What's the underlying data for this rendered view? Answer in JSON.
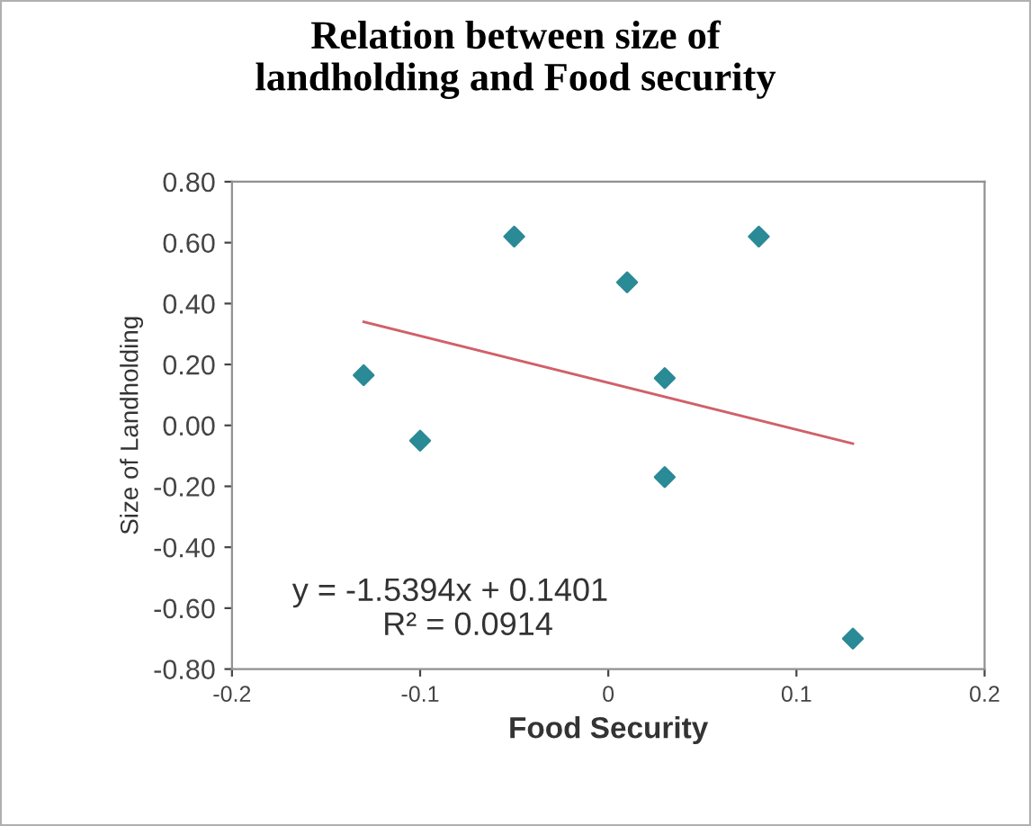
{
  "chart_data": {
    "type": "scatter",
    "title": "Relation between size of\nlandholding and Food security",
    "xlabel": "Food Security",
    "ylabel": "Size of Landholding",
    "series": [
      {
        "color": "#2a8a96",
        "marker": "diamond",
        "x": [
          -0.13,
          -0.1,
          -0.05,
          0.01,
          0.03,
          0.03,
          0.08,
          0.13
        ],
        "values": [
          0.165,
          -0.05,
          0.62,
          0.47,
          0.155,
          -0.17,
          0.62,
          -0.7
        ]
      },
      {
        "type": "line",
        "color": "#d0606a",
        "marker": "none",
        "x": [
          -0.13,
          0.13
        ],
        "values": [
          0.34,
          -0.06
        ]
      }
    ],
    "annotations": [
      "y = -1.5394x + 0.1401",
      "R² = 0.0914"
    ],
    "xlim": [
      -0.2,
      0.2
    ],
    "xticks": [
      -0.2,
      -0.1,
      0,
      0.1,
      0.2
    ],
    "ylim": [
      -0.8,
      0.8
    ],
    "yticks": [
      {
        "value": 0.8,
        "label": "0.80"
      },
      {
        "value": 0.6,
        "label": "0.60"
      },
      {
        "value": 0.4,
        "label": "0.40"
      },
      {
        "value": 0.2,
        "label": "0.20"
      },
      {
        "value": 0,
        "label": "0.00"
      },
      {
        "value": -0.2,
        "label": "-0.20"
      },
      {
        "value": -0.4,
        "label": "-0.40"
      },
      {
        "value": -0.6,
        "label": "-0.60"
      },
      {
        "value": -0.8,
        "label": "-0.80"
      }
    ],
    "grid": false,
    "legend": false
  }
}
